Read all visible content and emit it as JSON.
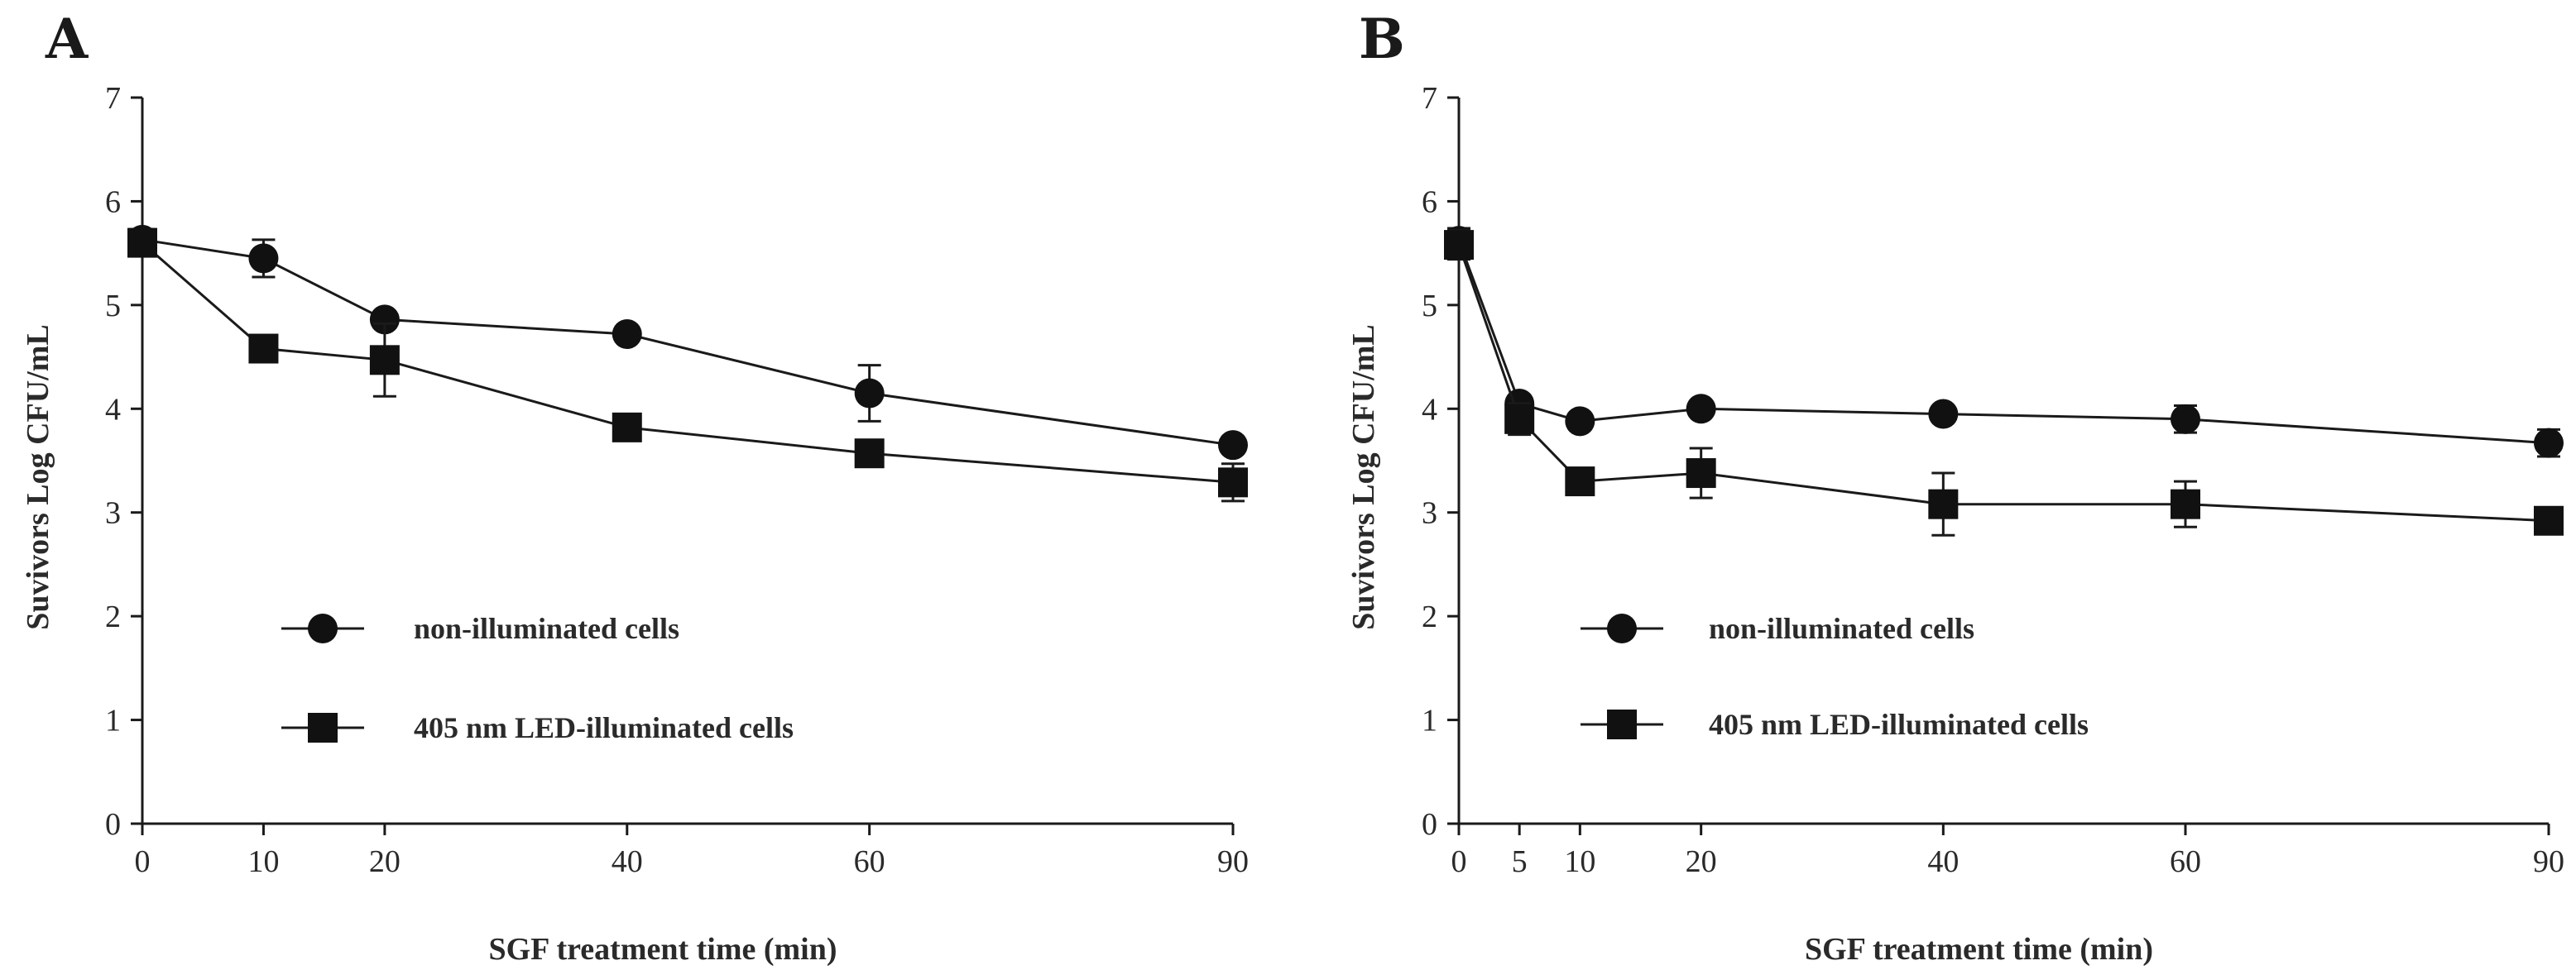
{
  "chart_data": [
    {
      "panel": "A",
      "type": "line",
      "xlabel": "SGF treatment time (min)",
      "ylabel": "Suvivors Log CFU/mL",
      "xlim": [
        0,
        90
      ],
      "ylim": [
        0,
        7
      ],
      "xticks": [
        0,
        10,
        20,
        40,
        60,
        90
      ],
      "yticks": [
        0,
        1,
        2,
        3,
        4,
        5,
        6,
        7
      ],
      "x": [
        0,
        10,
        20,
        40,
        60,
        90
      ],
      "series": [
        {
          "name": "non-illuminated cells",
          "marker": "circle",
          "values": [
            5.63,
            5.45,
            4.86,
            4.72,
            4.15,
            3.65
          ],
          "errors": [
            0.1,
            0.18,
            0.08,
            0.06,
            0.27,
            0.08
          ]
        },
        {
          "name": "405 nm LED-illuminated cells",
          "marker": "square",
          "values": [
            5.6,
            4.58,
            4.47,
            3.82,
            3.57,
            3.29
          ],
          "errors": [
            0.12,
            0.08,
            0.35,
            0.06,
            0.08,
            0.18
          ]
        }
      ],
      "legend_position": "lower-left"
    },
    {
      "panel": "B",
      "type": "line",
      "xlabel": "SGF treatment time (min)",
      "ylabel": "Suvivors Log CFU/mL",
      "xlim": [
        0,
        90
      ],
      "ylim": [
        0,
        7
      ],
      "xticks": [
        0,
        5,
        10,
        20,
        40,
        60,
        90
      ],
      "yticks": [
        0,
        1,
        2,
        3,
        4,
        5,
        6,
        7
      ],
      "x": [
        0,
        5,
        10,
        20,
        40,
        60,
        90
      ],
      "series": [
        {
          "name": "non-illuminated cells",
          "marker": "circle",
          "values": [
            5.62,
            4.05,
            3.88,
            4.0,
            3.95,
            3.9,
            3.67
          ],
          "errors": [
            0.12,
            0.08,
            0.08,
            0.06,
            0.06,
            0.13,
            0.13
          ]
        },
        {
          "name": "405 nm LED-illuminated cells",
          "marker": "square",
          "values": [
            5.58,
            3.9,
            3.3,
            3.38,
            3.08,
            3.08,
            2.92
          ],
          "errors": [
            0.14,
            0.15,
            0.1,
            0.24,
            0.3,
            0.22,
            0.06
          ]
        }
      ],
      "legend_position": "lower-left"
    }
  ]
}
